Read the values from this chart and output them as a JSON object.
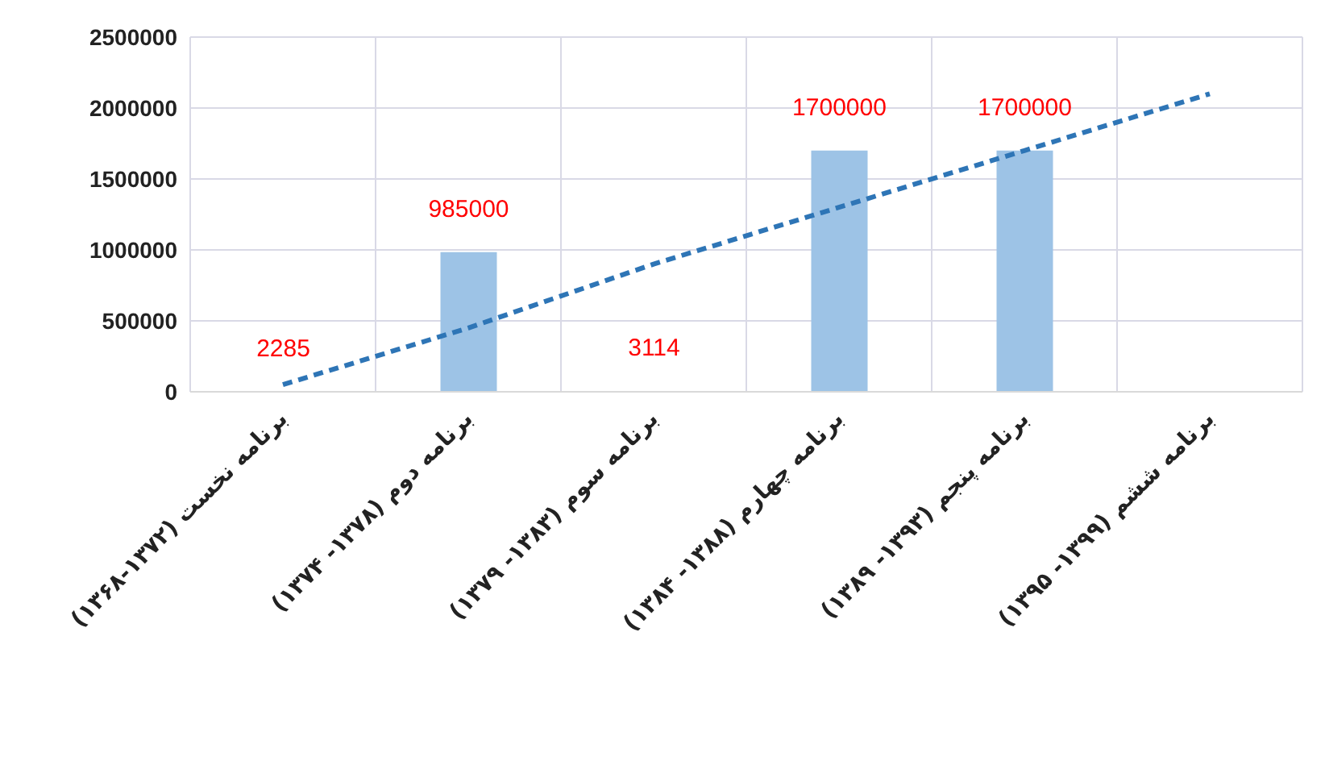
{
  "chart_data": {
    "type": "bar",
    "categories": [
      "برنامه نخست (۱۳۷۲-۱۳۶۸)",
      "برنامه دوم (۱۳۷۸- ۱۳۷۴)",
      "برنامه سوم (۱۳۸۳- ۱۳۷۹)",
      "برنامه چهارم (۱۳۸۸- ۱۳۸۴)",
      "برنامه پنجم (۱۳۹۳- ۱۳۸۹)",
      "برنامه ششم (۱۳۹۹- ۱۳۹۵)"
    ],
    "series": [
      {
        "color": "#9dc3e6",
        "values": [
          2285,
          985000,
          3114,
          1700000,
          1700000,
          null
        ],
        "value_labels": [
          "2285",
          "985000",
          "3114",
          "1700000",
          "1700000",
          null
        ]
      },
      {
        "type": "line",
        "color": "#2e75b6",
        "line_style": "dashed",
        "marker": "none",
        "values": [
          50000,
          450000,
          900000,
          1300000,
          1700000,
          2100000
        ]
      }
    ],
    "ylim": [
      0,
      2500000
    ],
    "yticks": [
      0,
      500000,
      1000000,
      1500000,
      2000000,
      2500000
    ],
    "grid": true
  }
}
